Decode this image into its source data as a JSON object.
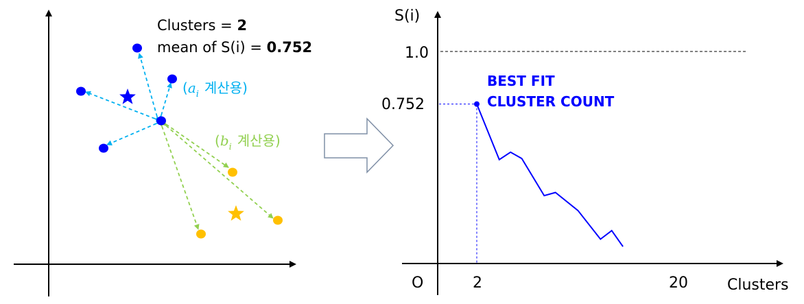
{
  "left_panel": {
    "clusters_label": "Clusters = ",
    "clusters_value": "2",
    "mean_label": "mean of S(i) = ",
    "mean_value": "0.752",
    "a_label": "계산용)",
    "a_symbol": "a",
    "a_sub": "i",
    "b_label": "계산용)",
    "b_symbol": "b",
    "b_sub": "i",
    "colors": {
      "cluster_blue": "#0000ff",
      "cluster_yellow": "#ffc000",
      "arrow_intra": "#00b0f0",
      "arrow_inter": "#92d050"
    }
  },
  "right_panel": {
    "y_axis_title": "S(i)",
    "x_axis_title": "Clusters",
    "origin_label": "O",
    "y_tick_top": "1.0",
    "y_tick_best": "0.752",
    "x_tick_start": "2",
    "x_tick_end": "20",
    "annotation_line1": "BEST FIT",
    "annotation_line2": "CLUSTER COUNT",
    "colors": {
      "curve": "#0000ff"
    }
  },
  "chart_data": {
    "type": "line",
    "title": "",
    "xlabel": "Clusters",
    "ylabel": "S(i)",
    "xlim": [
      0,
      20
    ],
    "ylim": [
      0,
      1.0
    ],
    "series": [
      {
        "x": [
          2,
          4,
          5,
          6,
          8,
          9,
          11,
          13,
          14,
          15
        ],
        "values": [
          0.752,
          0.49,
          0.525,
          0.495,
          0.32,
          0.335,
          0.25,
          0.115,
          0.155,
          0.08
        ]
      }
    ],
    "annotations": [
      "BEST FIT",
      "CLUSTER COUNT"
    ],
    "grid": false
  }
}
